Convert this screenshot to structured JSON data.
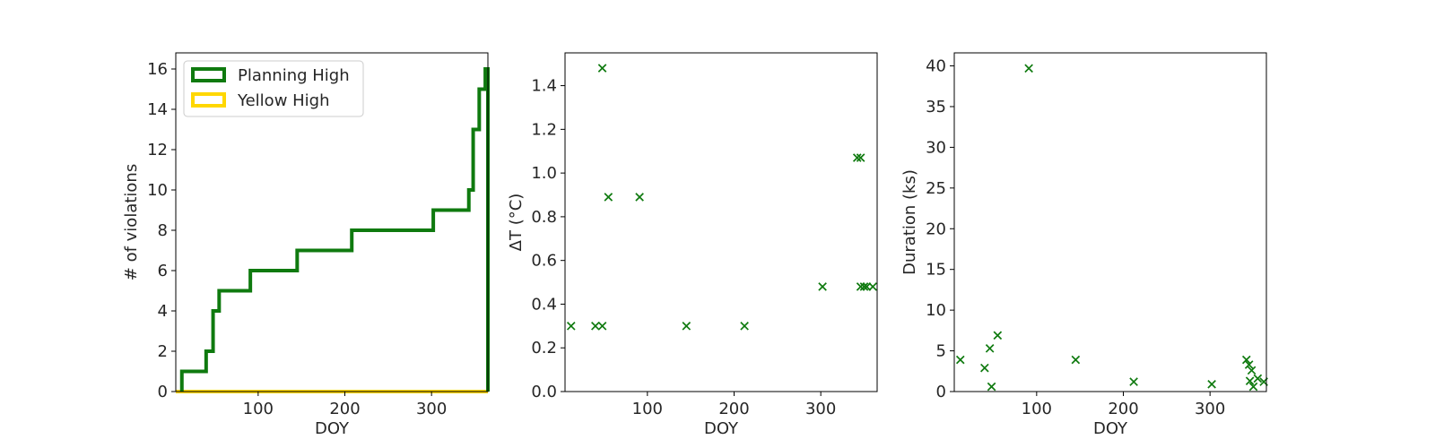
{
  "chart_data": [
    {
      "type": "step",
      "xlabel": "DOY",
      "ylabel": "# of violations",
      "xlim": [
        5,
        365
      ],
      "ylim": [
        0,
        16.8
      ],
      "xticks": [
        100,
        200,
        300
      ],
      "yticks": [
        0,
        2,
        4,
        6,
        8,
        10,
        12,
        14,
        16
      ],
      "legend_position": "top-left",
      "series": [
        {
          "name": "Planning High",
          "color": "#0f7a0f",
          "x": [
            12,
            40,
            48,
            55,
            91,
            145,
            208,
            302,
            343,
            348,
            355,
            362,
            365
          ],
          "values": [
            1,
            2,
            4,
            5,
            6,
            7,
            8,
            9,
            10,
            13,
            15,
            16,
            0
          ]
        },
        {
          "name": "Yellow High",
          "color": "#ffd700",
          "x": [
            5,
            365
          ],
          "values": [
            0,
            0
          ]
        }
      ]
    },
    {
      "type": "scatter",
      "xlabel": "DOY",
      "ylabel": "ΔT ($^\\circ$C)",
      "ylabel_unicode": "ΔT (°C)",
      "xlim": [
        5,
        365
      ],
      "ylim": [
        0,
        1.55
      ],
      "xticks": [
        100,
        200,
        300
      ],
      "yticks": [
        "0.0",
        "0.2",
        "0.4",
        "0.6",
        "0.8",
        "1.0",
        "1.2",
        "1.4"
      ],
      "color": "#0f7a0f",
      "points": [
        [
          12,
          0.3
        ],
        [
          40,
          0.3
        ],
        [
          48,
          0.3
        ],
        [
          48,
          1.48
        ],
        [
          55,
          0.89
        ],
        [
          91,
          0.89
        ],
        [
          145,
          0.3
        ],
        [
          212,
          0.3
        ],
        [
          302,
          0.48
        ],
        [
          342,
          1.07
        ],
        [
          346,
          1.07
        ],
        [
          346,
          0.48
        ],
        [
          350,
          0.48
        ],
        [
          353,
          0.48
        ],
        [
          360,
          0.48
        ]
      ]
    },
    {
      "type": "scatter",
      "xlabel": "DOY",
      "ylabel": "Duration (ks)",
      "xlim": [
        5,
        365
      ],
      "ylim": [
        0,
        41.6
      ],
      "xticks": [
        100,
        200,
        300
      ],
      "yticks": [
        0,
        5,
        10,
        15,
        20,
        25,
        30,
        35,
        40
      ],
      "color": "#0f7a0f",
      "points": [
        [
          12,
          3.9
        ],
        [
          40,
          2.9
        ],
        [
          46,
          5.3
        ],
        [
          48,
          0.6
        ],
        [
          55,
          6.9
        ],
        [
          91,
          39.7
        ],
        [
          145,
          3.9
        ],
        [
          212,
          1.2
        ],
        [
          302,
          0.9
        ],
        [
          342,
          3.9
        ],
        [
          345,
          3.3
        ],
        [
          346,
          1.3
        ],
        [
          348,
          2.6
        ],
        [
          350,
          0.6
        ],
        [
          355,
          1.6
        ],
        [
          362,
          1.2
        ]
      ]
    }
  ]
}
